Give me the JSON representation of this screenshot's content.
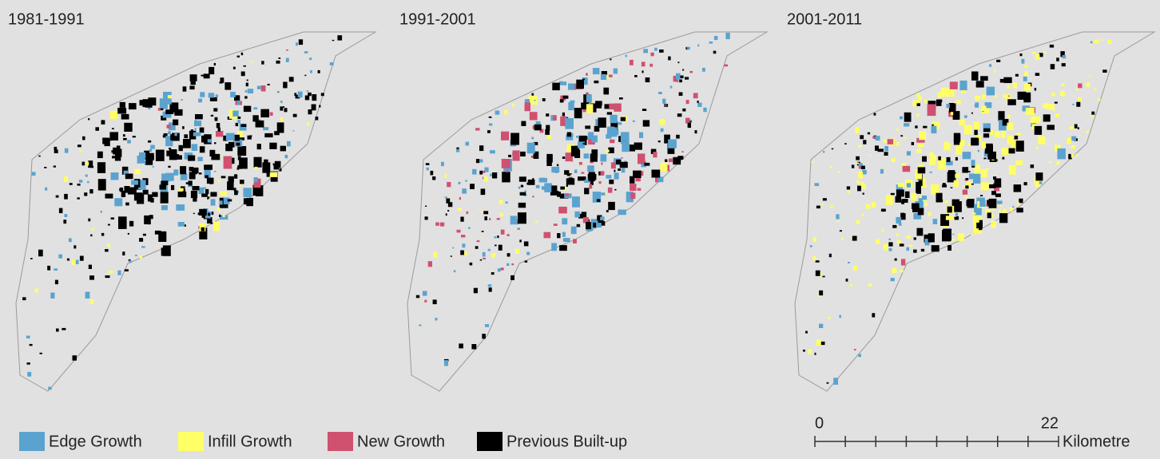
{
  "panels": [
    {
      "title": "1981-1991"
    },
    {
      "title": "1991-2001"
    },
    {
      "title": "2001-2011"
    }
  ],
  "legend": [
    {
      "label": "Edge Growth",
      "color": "#5ba3cf"
    },
    {
      "label": "Infill Growth",
      "color": "#ffff66"
    },
    {
      "label": "New Growth",
      "color": "#d05070"
    },
    {
      "label": "Previous Built-up",
      "color": "#000000"
    }
  ],
  "scale_bar": {
    "ticks": [
      0,
      22
    ],
    "unit": "Kilometre"
  }
}
